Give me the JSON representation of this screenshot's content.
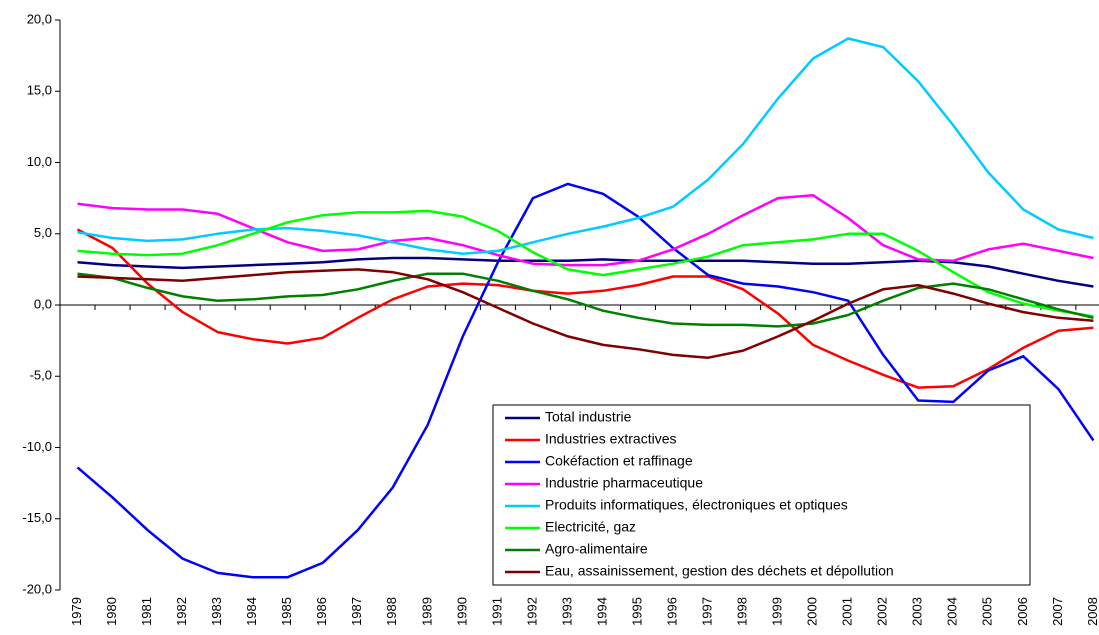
{
  "chart_data": {
    "type": "line",
    "categories": [
      "1979",
      "1980",
      "1981",
      "1982",
      "1983",
      "1984",
      "1985",
      "1986",
      "1987",
      "1988",
      "1989",
      "1990",
      "1991",
      "1992",
      "1993",
      "1994",
      "1995",
      "1996",
      "1997",
      "1998",
      "1999",
      "2000",
      "2001",
      "2002",
      "2003",
      "2004",
      "2005",
      "2006",
      "2007",
      "2008"
    ],
    "series": [
      {
        "name": "Total industrie",
        "color": "#000080",
        "values": [
          3.0,
          2.8,
          2.7,
          2.6,
          2.7,
          2.8,
          2.9,
          3.0,
          3.2,
          3.3,
          3.3,
          3.2,
          3.1,
          3.1,
          3.1,
          3.2,
          3.1,
          3.1,
          3.1,
          3.1,
          3.0,
          2.9,
          2.9,
          3.0,
          3.1,
          3.0,
          2.7,
          2.2,
          1.7,
          1.3
        ]
      },
      {
        "name": "Industries extractives",
        "color": "#ff0000",
        "values": [
          5.3,
          4.0,
          1.5,
          -0.5,
          -1.9,
          -2.4,
          -2.7,
          -2.3,
          -0.9,
          0.4,
          1.3,
          1.5,
          1.4,
          1.0,
          0.8,
          1.0,
          1.4,
          2.0,
          2.0,
          1.1,
          -0.6,
          -2.8,
          -3.9,
          -4.9,
          -5.8,
          -5.7,
          -4.5,
          -3.0,
          -1.8,
          -1.6
        ]
      },
      {
        "name": "Cokéfaction et raffinage",
        "color": "#0000ff",
        "values": [
          -11.4,
          -13.5,
          -15.8,
          -17.8,
          -18.8,
          -19.1,
          -19.1,
          -18.1,
          -15.8,
          -12.8,
          -8.4,
          -2.2,
          3.0,
          7.5,
          8.5,
          7.8,
          6.2,
          4.0,
          2.1,
          1.5,
          1.3,
          0.9,
          0.3,
          -3.5,
          -6.7,
          -6.8,
          -4.6,
          -3.6,
          -5.9,
          -9.5
        ]
      },
      {
        "name": "Industrie pharmaceutique",
        "color": "#ff00ff",
        "values": [
          7.1,
          6.8,
          6.7,
          6.7,
          6.4,
          5.4,
          4.4,
          3.8,
          3.9,
          4.5,
          4.7,
          4.2,
          3.5,
          2.9,
          2.8,
          2.8,
          3.1,
          3.9,
          5.0,
          6.3,
          7.5,
          7.7,
          6.1,
          4.2,
          3.2,
          3.1,
          3.9,
          4.3,
          3.8,
          3.3
        ]
      },
      {
        "name": "Produits informatiques, électroniques et optiques",
        "color": "#00ccff",
        "values": [
          5.1,
          4.7,
          4.5,
          4.6,
          5.0,
          5.3,
          5.4,
          5.2,
          4.9,
          4.4,
          3.9,
          3.6,
          3.8,
          4.4,
          5.0,
          5.5,
          6.1,
          6.9,
          8.8,
          11.3,
          14.5,
          17.3,
          18.7,
          18.1,
          15.7,
          12.6,
          9.3,
          6.7,
          5.3,
          4.7
        ]
      },
      {
        "name": "Electricité, gaz",
        "color": "#00ff00",
        "values": [
          3.8,
          3.6,
          3.5,
          3.6,
          4.2,
          5.0,
          5.8,
          6.3,
          6.5,
          6.5,
          6.6,
          6.2,
          5.2,
          3.7,
          2.5,
          2.1,
          2.5,
          2.9,
          3.4,
          4.2,
          4.4,
          4.6,
          5.0,
          5.0,
          3.8,
          2.3,
          0.9,
          0.1,
          -0.4,
          -0.8
        ]
      },
      {
        "name": "Agro-alimentaire",
        "color": "#008000",
        "values": [
          2.2,
          1.9,
          1.2,
          0.6,
          0.3,
          0.4,
          0.6,
          0.7,
          1.1,
          1.7,
          2.2,
          2.2,
          1.7,
          1.0,
          0.4,
          -0.4,
          -0.9,
          -1.3,
          -1.4,
          -1.4,
          -1.5,
          -1.3,
          -0.7,
          0.3,
          1.2,
          1.5,
          1.1,
          0.4,
          -0.3,
          -0.9
        ]
      },
      {
        "name": "Eau, assainissement, gestion des déchets et dépollution",
        "color": "#800000",
        "values": [
          2.0,
          1.9,
          1.8,
          1.7,
          1.9,
          2.1,
          2.3,
          2.4,
          2.5,
          2.3,
          1.8,
          0.9,
          -0.2,
          -1.3,
          -2.2,
          -2.8,
          -3.1,
          -3.5,
          -3.7,
          -3.2,
          -2.2,
          -1.1,
          0.1,
          1.1,
          1.4,
          0.8,
          0.1,
          -0.5,
          -0.9,
          -1.1
        ]
      }
    ],
    "ylim": [
      -20,
      20
    ],
    "yticks": [
      {
        "value": -20,
        "label": "-20,0"
      },
      {
        "value": -15,
        "label": "-15,0"
      },
      {
        "value": -10,
        "label": "-10,0"
      },
      {
        "value": -5,
        "label": "-5,0"
      },
      {
        "value": 0,
        "label": "0,0"
      },
      {
        "value": 5,
        "label": "5,0"
      },
      {
        "value": 10,
        "label": "10,0"
      },
      {
        "value": 15,
        "label": "15,0"
      },
      {
        "value": 20,
        "label": "20,0"
      }
    ],
    "grid": false,
    "legend": "lower right"
  }
}
